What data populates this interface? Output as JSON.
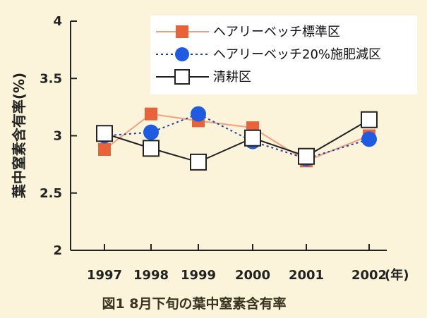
{
  "chart_data": {
    "type": "line",
    "categories": [
      "1997",
      "1998",
      "1999",
      "2000",
      "2001",
      "2002"
    ],
    "x_unit_suffix": "(年)",
    "ylabel": "葉中窒素含有率(%)",
    "ylim": [
      2,
      4
    ],
    "yticks": [
      "2",
      "2.5",
      "3",
      "3.5",
      "4"
    ],
    "caption": "図1 8月下旬の葉中窒素含有率",
    "grid": false,
    "legend_position": "top-right",
    "series": [
      {
        "name": "ヘアリーベッチ標準区",
        "marker": "square",
        "line": "solid",
        "color": "#e8623a",
        "line_color": "#f0a080",
        "values": [
          2.88,
          3.19,
          3.13,
          3.07,
          2.78,
          3.0
        ]
      },
      {
        "name": "ヘアリーベッチ20%施肥減区",
        "marker": "circle",
        "line": "dotted",
        "color": "#1f5be0",
        "line_color": "#1f3fa0",
        "values": [
          3.0,
          3.03,
          3.19,
          2.95,
          2.8,
          2.97
        ]
      },
      {
        "name": "清耕区",
        "marker": "open-square",
        "line": "solid",
        "color": "#222222",
        "line_color": "#222222",
        "values": [
          3.02,
          2.89,
          2.77,
          2.98,
          2.82,
          3.14
        ]
      }
    ]
  }
}
